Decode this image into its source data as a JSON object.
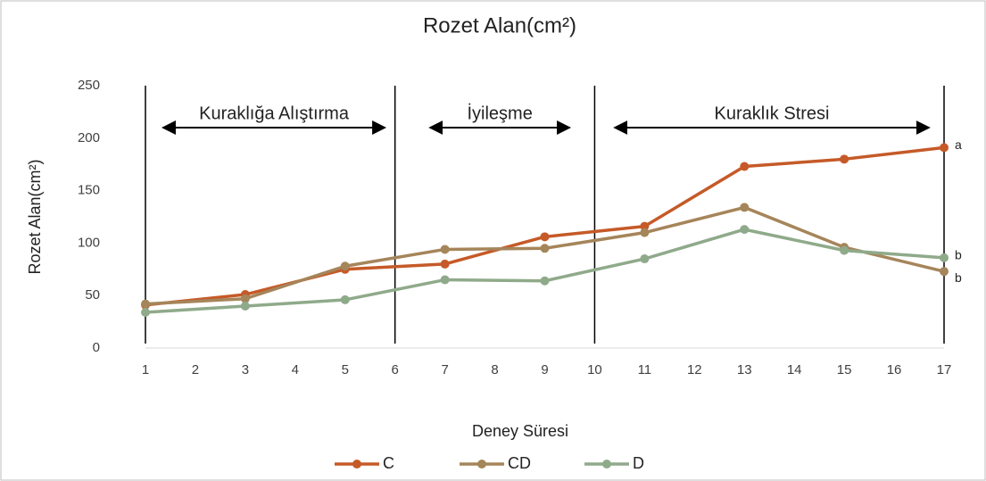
{
  "chart_data": {
    "type": "line",
    "title": "Rozet Alan(cm²)",
    "x_label": "Deney Süresi",
    "y_label": "Rozet Alan(cm²)",
    "x": [
      1,
      3,
      5,
      7,
      9,
      11,
      13,
      15,
      17
    ],
    "xlim": [
      1,
      17
    ],
    "xticks": [
      1,
      2,
      3,
      4,
      5,
      6,
      7,
      8,
      9,
      10,
      11,
      12,
      13,
      14,
      15,
      16,
      17
    ],
    "ylim": [
      0,
      250
    ],
    "yticks": [
      0,
      50,
      100,
      150,
      200,
      250
    ],
    "legend": "bottom",
    "dividers": [
      1,
      6,
      10,
      17
    ],
    "phases": [
      {
        "label": "Kuraklığa Alıştırma",
        "span": [
          1.35,
          5.8
        ]
      },
      {
        "label": "İyileşme",
        "span": [
          6.7,
          9.5
        ]
      },
      {
        "label": "Kuraklık Stresi",
        "span": [
          10.4,
          16.7
        ]
      }
    ],
    "series": [
      {
        "name": "C",
        "color": "#c55a28",
        "group": "a",
        "values": [
          41,
          51,
          75,
          80,
          106,
          116,
          173,
          180,
          191
        ]
      },
      {
        "name": "CD",
        "color": "#a5855a",
        "group": "b",
        "values": [
          42,
          47,
          78,
          94,
          95,
          110,
          134,
          96,
          73
        ]
      },
      {
        "name": "D",
        "color": "#8faa8a",
        "group": "b",
        "values": [
          34,
          40,
          46,
          65,
          64,
          85,
          113,
          93,
          86
        ]
      }
    ]
  }
}
